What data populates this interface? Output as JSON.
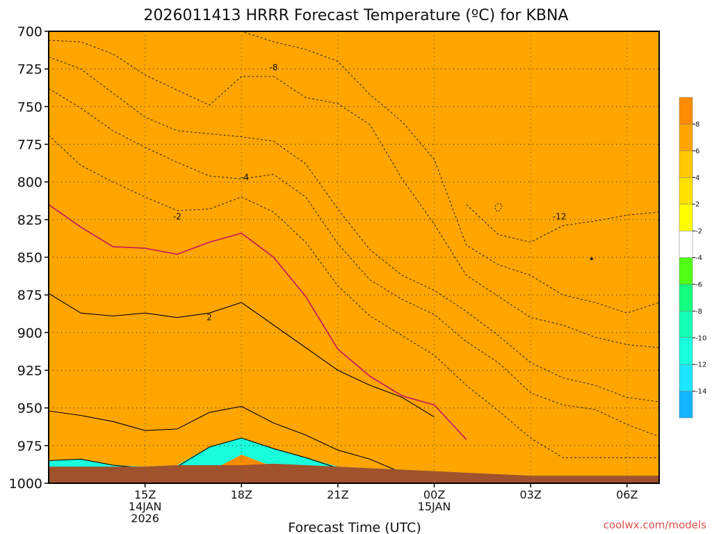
{
  "chart_data": {
    "type": "area",
    "title": "2026011413 HRRR Forecast Temperature (ºC) for KBNA",
    "xlabel": "Forecast Time (UTC)",
    "ylabel": "",
    "y_axis": {
      "unit": "hPa",
      "inverted": true,
      "range": [
        1000,
        700
      ],
      "ticks": [
        "700",
        "725",
        "750",
        "775",
        "800",
        "825",
        "850",
        "875",
        "900",
        "925",
        "950",
        "975",
        "1000"
      ]
    },
    "x_axis": {
      "range_hours_utc": [
        12,
        31
      ],
      "ticks": [
        {
          "hour": 15,
          "lines": [
            "15Z",
            "14JAN",
            "2026"
          ]
        },
        {
          "hour": 18,
          "lines": [
            "18Z"
          ]
        },
        {
          "hour": 21,
          "lines": [
            "21Z"
          ]
        },
        {
          "hour": 24,
          "lines": [
            "00Z",
            "15JAN"
          ]
        },
        {
          "hour": 27,
          "lines": [
            "03Z"
          ]
        },
        {
          "hour": 30,
          "lines": [
            "06Z"
          ]
        }
      ]
    },
    "grid": true,
    "colorbar": {
      "unit": "ºC",
      "levels": [
        -16,
        -14,
        -12,
        -10,
        -8,
        -6,
        -4,
        -2,
        2,
        4,
        6,
        8,
        10
      ],
      "tick_labels": [
        "-14",
        "-12",
        "-10",
        "-8",
        "-6",
        "-4",
        "-2",
        "2",
        "4",
        "6",
        "8"
      ],
      "colors": [
        "#14b4ff",
        "#1ee6ff",
        "#19ffdc",
        "#14ffb4",
        "#14ff80",
        "#50ff14",
        "#ffffff",
        "#ffff00",
        "#ffe100",
        "#ffc800",
        "#ffa500",
        "#ff8c00"
      ]
    },
    "x_hours": [
      12,
      13,
      14,
      15,
      16,
      17,
      18,
      19,
      20,
      21,
      22,
      23,
      24,
      25,
      26,
      27,
      28,
      29,
      30,
      31
    ],
    "surface_pressure": [
      989,
      989,
      989,
      989,
      988,
      988,
      988,
      987,
      988,
      989,
      990,
      991,
      992,
      993,
      994,
      995,
      995,
      995,
      995,
      995
    ],
    "isotherms_pressure": [
      {
        "temp": 8,
        "p": [
          null,
          null,
          null,
          null,
          null,
          null,
          983,
          null,
          null,
          null,
          null,
          null,
          null,
          null,
          null,
          null,
          null,
          null,
          null,
          null
        ]
      },
      {
        "temp": 6,
        "p": [
          985,
          984,
          988,
          990,
          989,
          976,
          970,
          977,
          983,
          990,
          996,
          null,
          null,
          null,
          null,
          null,
          null,
          null,
          null,
          null
        ]
      },
      {
        "temp": 4,
        "p": [
          952,
          955,
          959,
          965,
          964,
          953,
          949,
          960,
          968,
          978,
          984,
          993,
          null,
          null,
          null,
          null,
          null,
          null,
          null,
          null
        ]
      },
      {
        "temp": 2,
        "p": [
          874,
          887,
          889,
          887,
          890,
          887,
          880,
          895,
          910,
          925,
          935,
          943,
          956,
          null,
          null,
          null,
          null,
          null,
          null,
          null
        ]
      },
      {
        "temp": 0,
        "p": [
          815,
          830,
          843,
          844,
          848,
          840,
          834,
          850,
          876,
          911,
          929,
          942,
          948,
          971,
          null,
          null,
          null,
          null,
          null,
          null
        ]
      },
      {
        "temp": -2,
        "p": [
          769,
          789,
          800,
          810,
          819,
          818,
          810,
          820,
          840,
          869,
          889,
          902,
          915,
          935,
          952,
          970,
          983,
          983,
          983,
          983
        ]
      },
      {
        "temp": -4,
        "p": [
          738,
          751,
          766,
          777,
          787,
          796,
          798,
          795,
          810,
          841,
          865,
          878,
          888,
          906,
          920,
          940,
          948,
          951,
          961,
          969
        ]
      },
      {
        "temp": -6,
        "p": [
          717,
          725,
          741,
          757,
          766,
          768,
          770,
          773,
          788,
          818,
          845,
          862,
          872,
          886,
          902,
          920,
          930,
          935,
          943,
          946
        ]
      },
      {
        "temp": -8,
        "p": [
          706,
          707,
          715,
          729,
          739,
          749,
          730,
          730,
          744,
          748,
          762,
          798,
          828,
          862,
          876,
          890,
          895,
          903,
          908,
          910
        ]
      },
      {
        "temp": -10,
        "p": [
          700,
          700,
          700,
          700,
          700,
          700,
          700,
          707,
          712,
          720,
          742,
          760,
          785,
          842,
          855,
          862,
          875,
          880,
          887,
          880
        ]
      },
      {
        "temp": -12,
        "p": [
          null,
          null,
          null,
          null,
          null,
          null,
          null,
          null,
          null,
          null,
          null,
          null,
          null,
          815,
          835,
          840,
          829,
          826,
          822,
          820
        ]
      }
    ],
    "contour_labels": [
      "-8",
      "-4",
      "-2",
      "2",
      "-12"
    ],
    "annotations": []
  },
  "credit": "coolwx.com/models"
}
